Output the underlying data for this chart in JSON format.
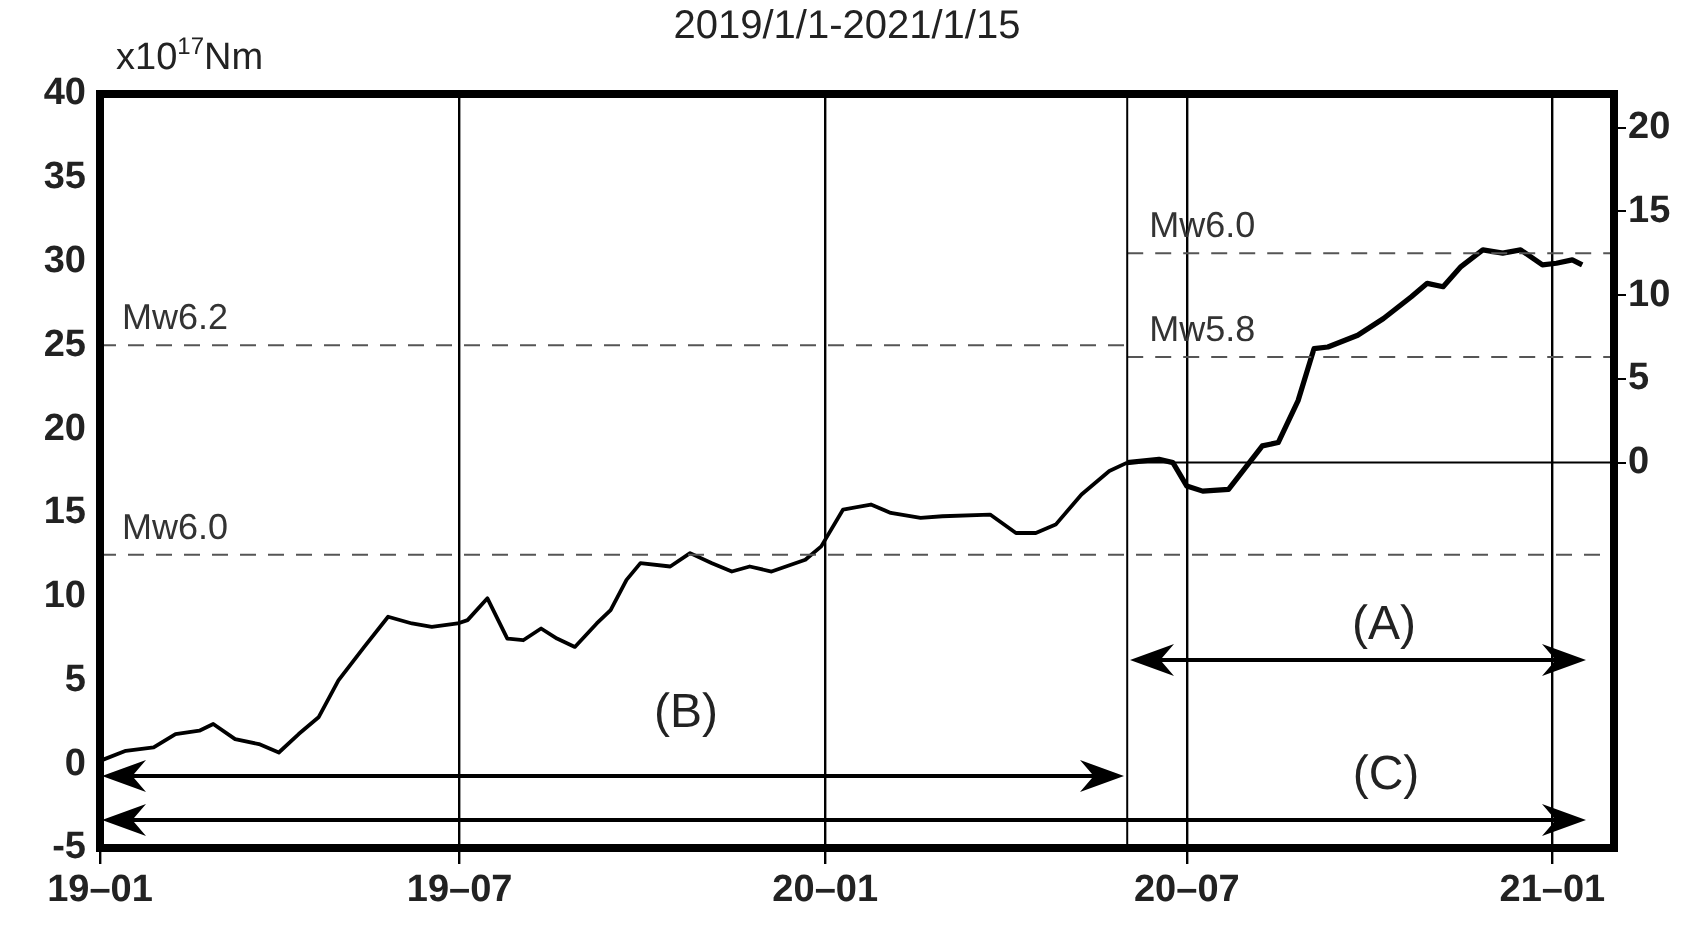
{
  "chart_data": {
    "type": "line",
    "title": "2019/1/1-2021/1/15",
    "ylabel": "x10$^{17}$Nm",
    "xlim": [
      "2019-01-01",
      "2021-02-01"
    ],
    "xticks": [
      {
        "value": "2019-01-01",
        "label": "19–01"
      },
      {
        "value": "2019-07-01",
        "label": "19–07"
      },
      {
        "value": "2020-01-01",
        "label": "20–01"
      },
      {
        "value": "2020-07-01",
        "label": "20–07"
      },
      {
        "value": "2021-01-01",
        "label": "21–01"
      }
    ],
    "ylim": [
      -5,
      40
    ],
    "yticks": [
      -5,
      0,
      5,
      10,
      15,
      20,
      25,
      30,
      35,
      40
    ],
    "y2lim": [
      -23,
      22
    ],
    "y2ticks": [
      0,
      5,
      10,
      15,
      20
    ],
    "series": [
      {
        "color": "#000000",
        "x": [
          "2019-01-01",
          "2019-01-14",
          "2019-01-28",
          "2019-02-08",
          "2019-02-20",
          "2019-02-27",
          "2019-03-10",
          "2019-03-22",
          "2019-04-01",
          "2019-04-11",
          "2019-04-21",
          "2019-05-01",
          "2019-05-14",
          "2019-05-26",
          "2019-06-07",
          "2019-06-17",
          "2019-06-30",
          "2019-07-05",
          "2019-07-15",
          "2019-07-25",
          "2019-08-02",
          "2019-08-11",
          "2019-08-19",
          "2019-08-28",
          "2019-09-08",
          "2019-09-15",
          "2019-09-23",
          "2019-09-30",
          "2019-10-15",
          "2019-10-25",
          "2019-11-05",
          "2019-11-15",
          "2019-11-24",
          "2019-12-05",
          "2019-12-22",
          "2019-12-30",
          "2020-01-10",
          "2020-01-24",
          "2020-02-03",
          "2020-02-18",
          "2020-02-29",
          "2020-03-24",
          "2020-04-06",
          "2020-04-16",
          "2020-04-26",
          "2020-05-09",
          "2020-05-23",
          "2020-06-01"
        ],
        "values": [
          0.2,
          0.8,
          1.0,
          1.8,
          2.0,
          2.4,
          1.5,
          1.2,
          0.7,
          1.8,
          2.8,
          5.0,
          7.0,
          8.8,
          8.4,
          8.2,
          8.4,
          8.6,
          9.9,
          7.5,
          7.4,
          8.1,
          7.5,
          7.0,
          8.4,
          9.2,
          11.0,
          12.0,
          11.8,
          12.6,
          12.0,
          11.5,
          11.8,
          11.5,
          12.2,
          13.0,
          15.2,
          15.5,
          15.0,
          14.7,
          14.8,
          14.9,
          13.8,
          13.8,
          14.3,
          16.1,
          17.5,
          18.0
        ]
      },
      {
        "color": "#000000",
        "axis": "y2",
        "x": [
          "2020-06-01",
          "2020-06-17",
          "2020-06-24",
          "2020-07-01",
          "2020-07-09",
          "2020-07-22",
          "2020-08-08",
          "2020-08-16",
          "2020-08-26",
          "2020-09-03",
          "2020-09-10",
          "2020-09-25",
          "2020-10-08",
          "2020-10-22",
          "2020-10-30",
          "2020-11-07",
          "2020-11-16",
          "2020-11-27",
          "2020-12-07",
          "2020-12-16",
          "2020-12-27",
          "2021-01-03",
          "2021-01-11",
          "2021-01-16"
        ],
        "values": [
          0,
          0.2,
          0,
          -1.4,
          -1.7,
          -1.6,
          1.0,
          1.2,
          3.7,
          6.8,
          6.9,
          7.6,
          8.6,
          9.9,
          10.7,
          10.5,
          11.7,
          12.7,
          12.5,
          12.7,
          11.8,
          11.9,
          12.1,
          11.8
        ]
      }
    ],
    "ref_lines": [
      {
        "axis": "y",
        "value": 25,
        "label": "Mw6.2",
        "color": "#555555",
        "line_style": "dashed"
      },
      {
        "axis": "y",
        "value": 12.5,
        "label": "Mw6.0",
        "color": "#555555",
        "line_style": "dashed"
      },
      {
        "axis": "y2",
        "value": 12.5,
        "label": "Mw6.0",
        "color": "#555555",
        "line_style": "dashed"
      },
      {
        "axis": "y2",
        "value": 6.3,
        "label": "Mw5.8",
        "color": "#555555",
        "line_style": "dashed"
      },
      {
        "axis": "y2",
        "value": 0,
        "label": null,
        "color": "#000000",
        "line_style": "solid"
      },
      {
        "axis": "x",
        "value": "2020-06-01",
        "label": null,
        "color": "#000000",
        "line_style": "solid"
      }
    ],
    "annotations": [
      "(A)",
      "(B)",
      "(C)"
    ],
    "grid": "x",
    "legend": false,
    "marker": "none",
    "line_style": "solid"
  }
}
